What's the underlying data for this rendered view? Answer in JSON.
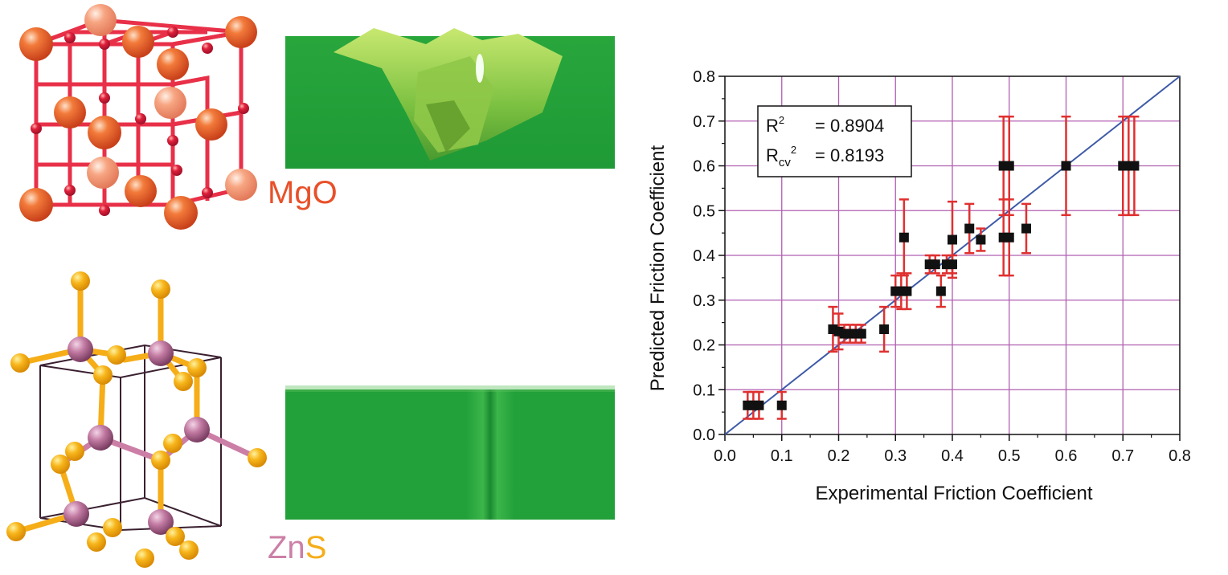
{
  "colors": {
    "mgo_label": "#e8502a",
    "zn": "#cc7fa6",
    "s": "#f5ad18",
    "surface_green": "#22a03a",
    "grid": "#b05fb0",
    "errorbar": "#e03030",
    "marker": "#111111",
    "fit_line": "#3e5aa8"
  },
  "labels": {
    "mgo": "MgO",
    "zns_zn": "Zn",
    "zns_s": "S"
  },
  "stats": {
    "r2_label": "R",
    "r2_sup": "2",
    "r2_value": "= 0.8904",
    "rcv_label": "R",
    "rcv_sub": "cv",
    "rcv_sup": "2",
    "rcv_value": "= 0.8193"
  },
  "chart_data": {
    "type": "scatter",
    "xlabel": "Experimental Friction Coefficient",
    "ylabel": "Predicted Friction Coefficient",
    "xlim": [
      0.0,
      0.8
    ],
    "ylim": [
      0.0,
      0.8
    ],
    "xticks": [
      "0.0",
      "0.1",
      "0.2",
      "0.3",
      "0.4",
      "0.5",
      "0.6",
      "0.7",
      "0.8"
    ],
    "yticks": [
      "0.0",
      "0.1",
      "0.2",
      "0.3",
      "0.4",
      "0.5",
      "0.6",
      "0.7",
      "0.8"
    ],
    "grid": true,
    "fit_line": [
      [
        0.0,
        0.0
      ],
      [
        0.8,
        0.8
      ]
    ],
    "points": [
      {
        "x": 0.04,
        "y": 0.065,
        "err": 0.03
      },
      {
        "x": 0.05,
        "y": 0.065,
        "err": 0.03
      },
      {
        "x": 0.06,
        "y": 0.065,
        "err": 0.03
      },
      {
        "x": 0.1,
        "y": 0.065,
        "err": 0.03
      },
      {
        "x": 0.19,
        "y": 0.235,
        "err": 0.05
      },
      {
        "x": 0.2,
        "y": 0.23,
        "err": 0.04
      },
      {
        "x": 0.21,
        "y": 0.225,
        "err": 0.02
      },
      {
        "x": 0.22,
        "y": 0.225,
        "err": 0.02
      },
      {
        "x": 0.23,
        "y": 0.225,
        "err": 0.02
      },
      {
        "x": 0.24,
        "y": 0.225,
        "err": 0.02
      },
      {
        "x": 0.28,
        "y": 0.235,
        "err": 0.05
      },
      {
        "x": 0.3,
        "y": 0.32,
        "err": 0.035
      },
      {
        "x": 0.31,
        "y": 0.32,
        "err": 0.04
      },
      {
        "x": 0.315,
        "y": 0.44,
        "err": 0.085
      },
      {
        "x": 0.32,
        "y": 0.32,
        "err": 0.04
      },
      {
        "x": 0.36,
        "y": 0.38,
        "err": 0.02
      },
      {
        "x": 0.37,
        "y": 0.38,
        "err": 0.02
      },
      {
        "x": 0.38,
        "y": 0.32,
        "err": 0.035
      },
      {
        "x": 0.39,
        "y": 0.38,
        "err": 0.02
      },
      {
        "x": 0.4,
        "y": 0.435,
        "err": 0.085
      },
      {
        "x": 0.4,
        "y": 0.38,
        "err": 0.02
      },
      {
        "x": 0.43,
        "y": 0.46,
        "err": 0.055
      },
      {
        "x": 0.45,
        "y": 0.435,
        "err": 0.025
      },
      {
        "x": 0.49,
        "y": 0.44,
        "err": 0.085
      },
      {
        "x": 0.49,
        "y": 0.6,
        "err": 0.11
      },
      {
        "x": 0.5,
        "y": 0.44,
        "err": 0.085
      },
      {
        "x": 0.5,
        "y": 0.6,
        "err": 0.11
      },
      {
        "x": 0.53,
        "y": 0.46,
        "err": 0.055
      },
      {
        "x": 0.6,
        "y": 0.6,
        "err": 0.11
      },
      {
        "x": 0.7,
        "y": 0.6,
        "err": 0.11
      },
      {
        "x": 0.71,
        "y": 0.6,
        "err": 0.11
      },
      {
        "x": 0.72,
        "y": 0.6,
        "err": 0.11
      }
    ]
  }
}
